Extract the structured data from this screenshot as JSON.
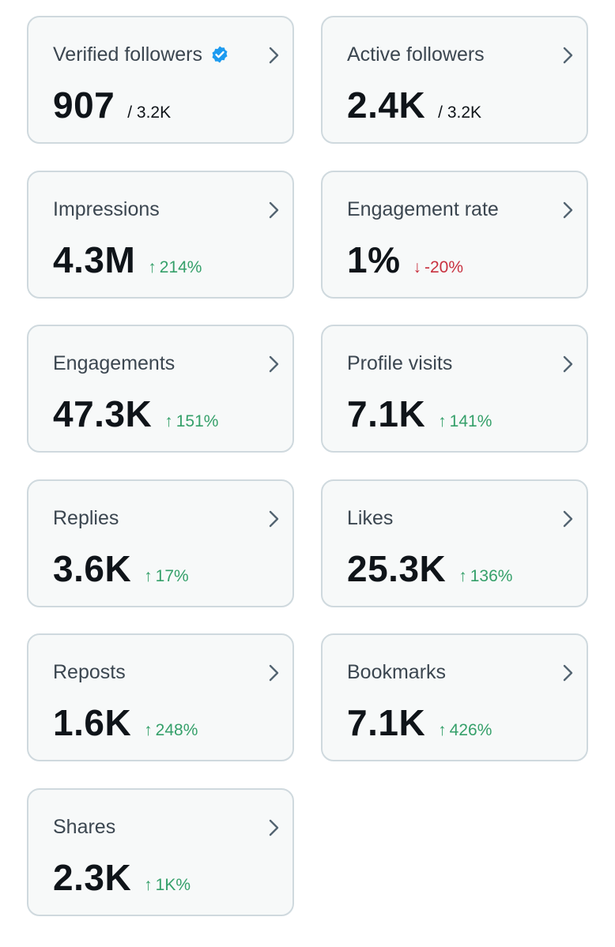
{
  "colors": {
    "up": "#35a06a",
    "down": "#c8313f",
    "verified": "#1d9bf0"
  },
  "cards": [
    {
      "label": "Verified followers",
      "value": "907",
      "sub": "/ 3.2K"
    },
    {
      "label": "Active followers",
      "value": "2.4K",
      "sub": "/ 3.2K"
    },
    {
      "label": "Impressions",
      "value": "4.3M",
      "delta": "214%",
      "arrow": "↑",
      "trend": "up"
    },
    {
      "label": "Engagement rate",
      "value": "1%",
      "delta": "-20%",
      "arrow": "↓",
      "trend": "down"
    },
    {
      "label": "Engagements",
      "value": "47.3K",
      "delta": "151%",
      "arrow": "↑",
      "trend": "up"
    },
    {
      "label": "Profile visits",
      "value": "7.1K",
      "delta": "141%",
      "arrow": "↑",
      "trend": "up"
    },
    {
      "label": "Replies",
      "value": "3.6K",
      "delta": "17%",
      "arrow": "↑",
      "trend": "up"
    },
    {
      "label": "Likes",
      "value": "25.3K",
      "delta": "136%",
      "arrow": "↑",
      "trend": "up"
    },
    {
      "label": "Reposts",
      "value": "1.6K",
      "delta": "248%",
      "arrow": "↑",
      "trend": "up"
    },
    {
      "label": "Bookmarks",
      "value": "7.1K",
      "delta": "426%",
      "arrow": "↑",
      "trend": "up"
    },
    {
      "label": "Shares",
      "value": "2.3K",
      "delta": "1K%",
      "arrow": "↑",
      "trend": "up"
    }
  ]
}
